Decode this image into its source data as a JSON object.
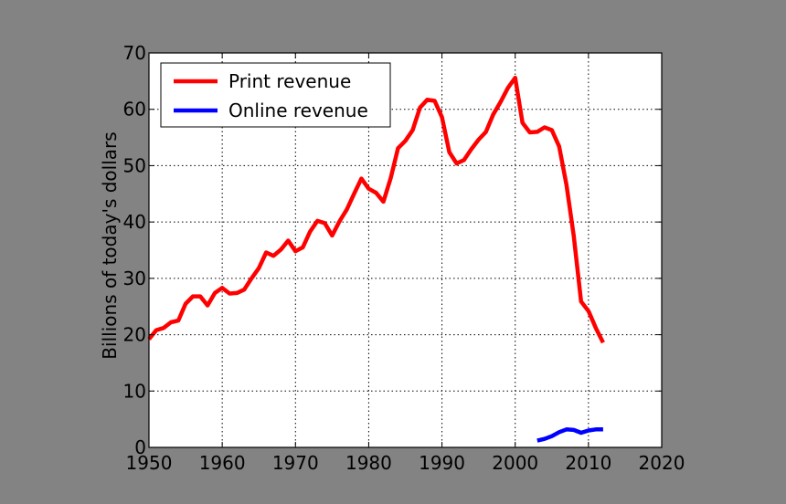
{
  "chart_data": {
    "type": "line",
    "title": "",
    "xlabel": "",
    "ylabel": "Billions of today's dollars",
    "xlim": [
      1950,
      2020
    ],
    "ylim": [
      0,
      70
    ],
    "xticks": [
      1950,
      1960,
      1970,
      1980,
      1990,
      2000,
      2010,
      2020
    ],
    "yticks": [
      0,
      10,
      20,
      30,
      40,
      50,
      60,
      70
    ],
    "xtick_labels": [
      "1950",
      "1960",
      "1970",
      "1980",
      "1990",
      "2000",
      "2010",
      "2020"
    ],
    "ytick_labels": [
      "0",
      "10",
      "20",
      "30",
      "40",
      "50",
      "60",
      "70"
    ],
    "grid": true,
    "legend_position": "top-left",
    "background": "#ffffff",
    "series": [
      {
        "name": "Print revenue",
        "color": "#ff0000",
        "x": [
          1950,
          1951,
          1952,
          1953,
          1954,
          1955,
          1956,
          1957,
          1958,
          1959,
          1960,
          1961,
          1962,
          1963,
          1964,
          1965,
          1966,
          1967,
          1968,
          1969,
          1970,
          1971,
          1972,
          1973,
          1974,
          1975,
          1976,
          1977,
          1978,
          1979,
          1980,
          1981,
          1982,
          1983,
          1984,
          1985,
          1986,
          1987,
          1988,
          1989,
          1990,
          1991,
          1992,
          1993,
          1994,
          1995,
          1996,
          1997,
          1998,
          1999,
          2000,
          2001,
          2002,
          2003,
          2004,
          2005,
          2006,
          2007,
          2008,
          2009,
          2010,
          2011,
          2012
        ],
        "values": [
          19.2,
          20.8,
          21.2,
          22.2,
          22.5,
          25.5,
          26.8,
          26.8,
          25.2,
          27.4,
          28.3,
          27.3,
          27.4,
          28.0,
          30.0,
          31.8,
          34.6,
          34.0,
          35.1,
          36.7,
          34.8,
          35.5,
          38.3,
          40.2,
          39.8,
          37.6,
          40.1,
          42.2,
          45.0,
          47.7,
          45.9,
          45.2,
          43.6,
          47.8,
          53.1,
          54.4,
          56.3,
          60.3,
          61.7,
          61.5,
          58.6,
          52.4,
          50.4,
          51.0,
          52.9,
          54.6,
          56.0,
          59.1,
          61.3,
          63.8,
          65.6,
          57.6,
          55.9,
          56.0,
          56.8,
          56.3,
          53.4,
          46.6,
          37.5,
          25.9,
          24.2,
          21.2,
          18.6
        ]
      },
      {
        "name": "Online revenue",
        "color": "#0000ff",
        "x": [
          2003,
          2004,
          2005,
          2006,
          2007,
          2008,
          2009,
          2010,
          2011,
          2012
        ],
        "values": [
          1.2,
          1.5,
          2.0,
          2.7,
          3.2,
          3.1,
          2.6,
          3.0,
          3.2,
          3.2
        ]
      }
    ]
  }
}
